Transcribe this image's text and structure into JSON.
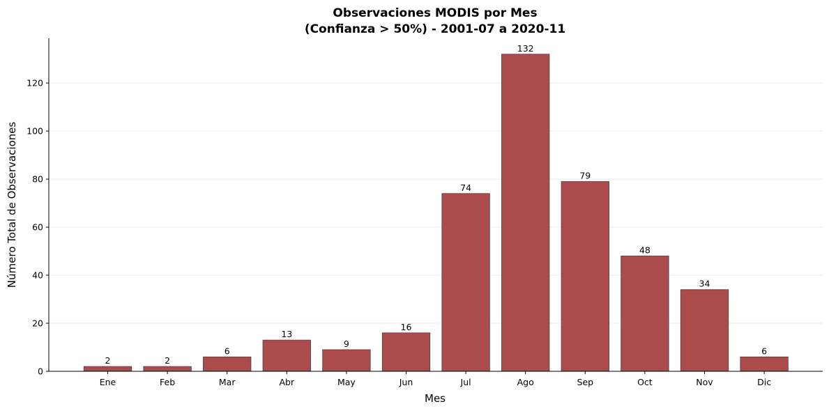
{
  "chart_data": {
    "type": "bar",
    "title_line1": "Observaciones MODIS por Mes",
    "title_line2": "(Confianza > 50%) - 2001-07 a 2020-11",
    "xlabel": "Mes",
    "ylabel": "Número Total de Observaciones",
    "categories": [
      "Ene",
      "Feb",
      "Mar",
      "Abr",
      "May",
      "Jun",
      "Jul",
      "Ago",
      "Sep",
      "Oct",
      "Nov",
      "Dic"
    ],
    "values": [
      2,
      2,
      6,
      13,
      9,
      16,
      74,
      132,
      79,
      48,
      34,
      6
    ],
    "ylim": [
      0,
      138.6
    ],
    "yticks": [
      0,
      20,
      40,
      60,
      80,
      100,
      120
    ],
    "grid": "horizontal",
    "bar_color": "#ab4b4c",
    "bar_edge_color": "#444444",
    "legend": "none"
  }
}
